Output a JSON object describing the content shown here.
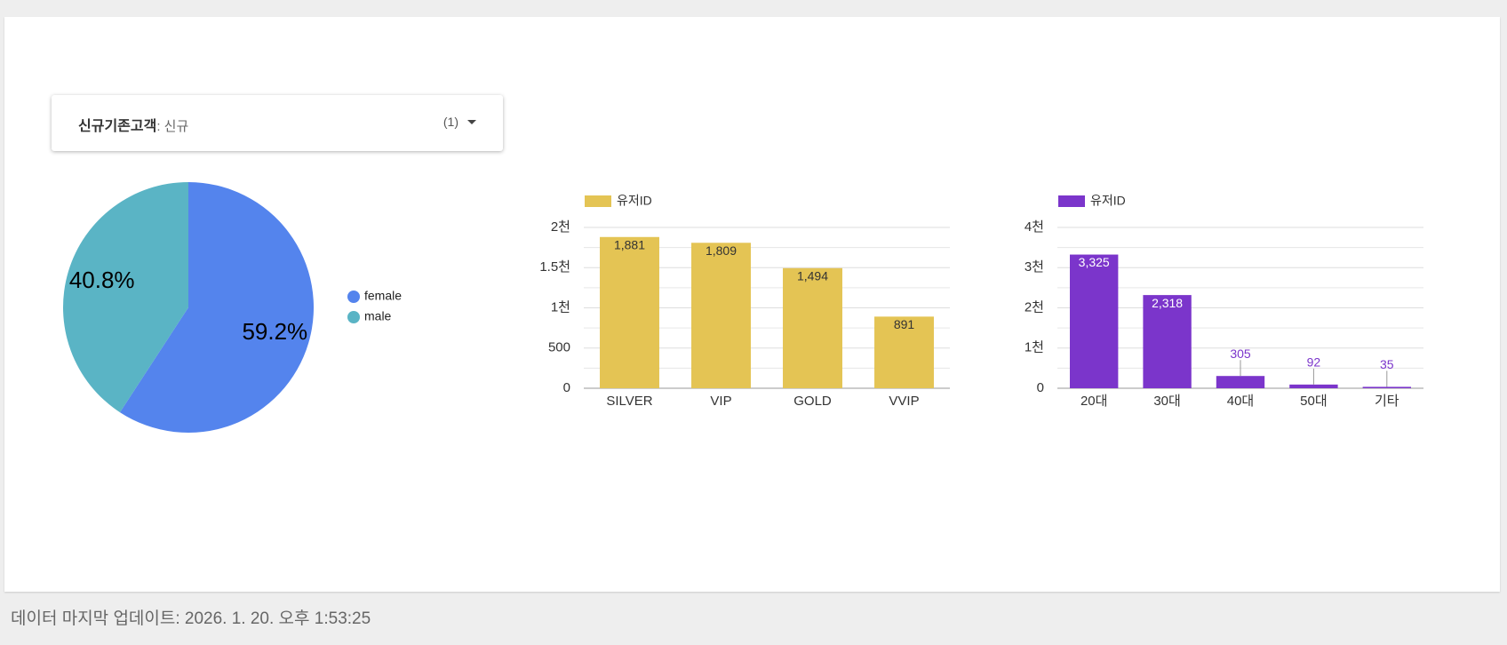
{
  "filter": {
    "field": "신규기존고객",
    "value_text": ": 신규",
    "count": "(1)"
  },
  "chart_data": [
    {
      "type": "pie",
      "categories": [
        "female",
        "male"
      ],
      "values": [
        59.2,
        40.8
      ],
      "value_labels": [
        "59.2%",
        "40.8%"
      ],
      "colors": [
        "#5484ed",
        "#5ab4c5"
      ]
    },
    {
      "type": "bar",
      "categories": [
        "SILVER",
        "VIP",
        "GOLD",
        "VVIP"
      ],
      "series": [
        {
          "name": "유저ID",
          "color": "#e4c454",
          "values": [
            1881,
            1809,
            1494,
            891
          ],
          "value_labels": [
            "1,881",
            "1,809",
            "1,494",
            "891"
          ]
        }
      ],
      "ylim": [
        0,
        2000
      ],
      "yticks": [
        0,
        500,
        {
          "value": 1000,
          "label": "1천"
        },
        {
          "value": 1500,
          "label": "1.5천"
        },
        {
          "value": 2000,
          "label": "2천"
        }
      ],
      "grid": true
    },
    {
      "type": "bar",
      "categories": [
        "20대",
        "30대",
        "40대",
        "50대",
        "기타"
      ],
      "series": [
        {
          "name": "유저ID",
          "color": "#7b35cb",
          "values": [
            3325,
            2318,
            305,
            92,
            35
          ],
          "value_labels": [
            "3,325",
            "2,318",
            "305",
            "92",
            "35"
          ]
        }
      ],
      "ylim": [
        0,
        4000
      ],
      "yticks": [
        0,
        {
          "value": 1000,
          "label": "1천"
        },
        {
          "value": 2000,
          "label": "2천"
        },
        {
          "value": 3000,
          "label": "3천"
        },
        {
          "value": 4000,
          "label": "4천"
        }
      ],
      "grid": true
    }
  ],
  "footer": "데이터 마지막 업데이트: 2026. 1. 20. 오후 1:53:25"
}
